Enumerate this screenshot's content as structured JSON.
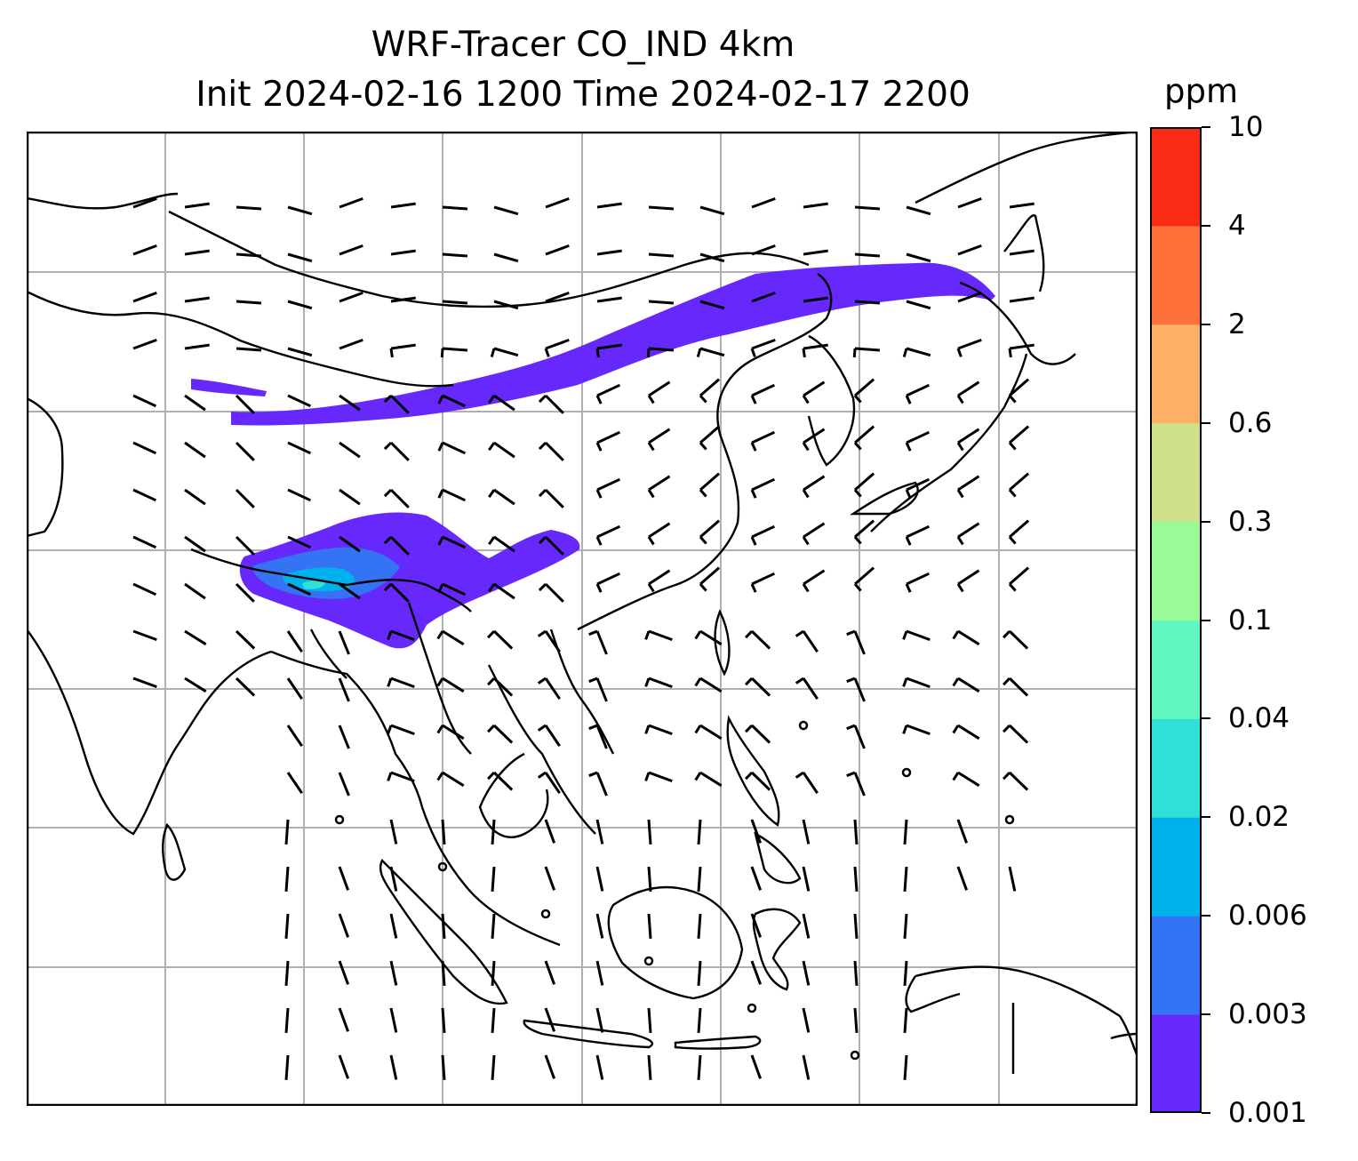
{
  "title": {
    "line1": "WRF-Tracer CO_IND 4km",
    "line2": "Init 2024-02-16 1200 Time 2024-02-17 2200"
  },
  "colorbar": {
    "unit": "ppm",
    "levels": [
      "0.001",
      "0.003",
      "0.006",
      "0.02",
      "0.04",
      "0.1",
      "0.3",
      "0.6",
      "2",
      "4",
      "10"
    ],
    "colors": [
      "#6628fb",
      "#3473f4",
      "#00b2ec",
      "#2ee0d6",
      "#62f7c0",
      "#98fb98",
      "#cee08a",
      "#fcb065",
      "#fe713a",
      "#fa2c16"
    ]
  },
  "map": {
    "gridlines": true,
    "coastline_color": "#000000",
    "grid_color": "#b0b0b0",
    "features": [
      "coastlines",
      "country-borders",
      "wind-barbs",
      "co-tracer-plume"
    ]
  }
}
